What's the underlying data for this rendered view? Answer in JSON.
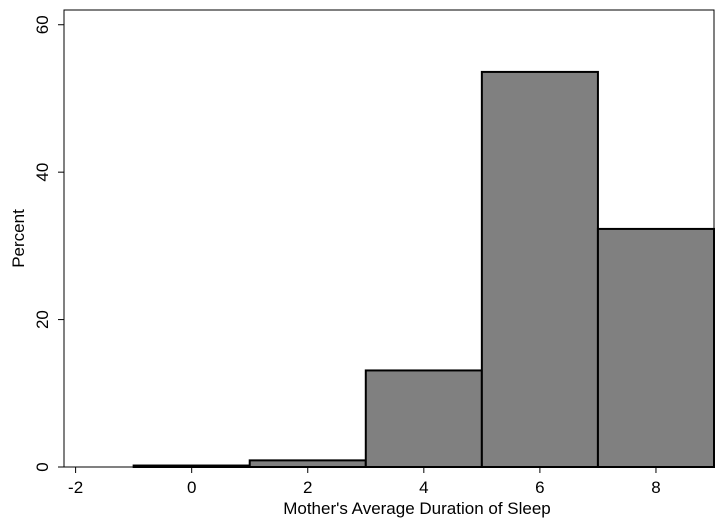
{
  "chart_data": {
    "type": "bar",
    "title": "",
    "xlabel": "Mother's Average Duration of Sleep",
    "ylabel": "Percent",
    "xlim": [
      -2.2,
      9
    ],
    "ylim": [
      0,
      62
    ],
    "xticks": [
      -2,
      0,
      2,
      4,
      6,
      8
    ],
    "yticks": [
      0,
      20,
      40,
      60
    ],
    "grid": false,
    "bin_width": 2,
    "bins": [
      {
        "start": -1,
        "end": 1,
        "value": 0.2
      },
      {
        "start": 1,
        "end": 3,
        "value": 0.9
      },
      {
        "start": 3,
        "end": 5,
        "value": 13.1
      },
      {
        "start": 5,
        "end": 7,
        "value": 53.6
      },
      {
        "start": 7,
        "end": 9,
        "value": 32.3
      }
    ],
    "bar_color": "#808080",
    "edge_color": "#000000"
  }
}
